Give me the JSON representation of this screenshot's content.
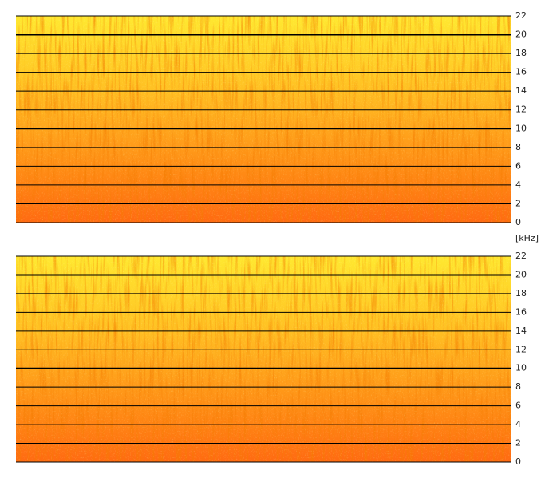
{
  "chart_data": [
    {
      "type": "spectrogram",
      "ylim": [
        0,
        22
      ],
      "yticks": [
        0,
        2,
        4,
        6,
        8,
        10,
        12,
        14,
        16,
        18,
        20,
        22
      ],
      "major_yticks": [
        10,
        20
      ],
      "grid": true,
      "ylabel": "[kHz]"
    },
    {
      "type": "spectrogram",
      "ylim": [
        0,
        22
      ],
      "yticks": [
        0,
        2,
        4,
        6,
        8,
        10,
        12,
        14,
        16,
        18,
        20,
        22
      ],
      "major_yticks": [
        10,
        20
      ],
      "grid": true
    }
  ]
}
